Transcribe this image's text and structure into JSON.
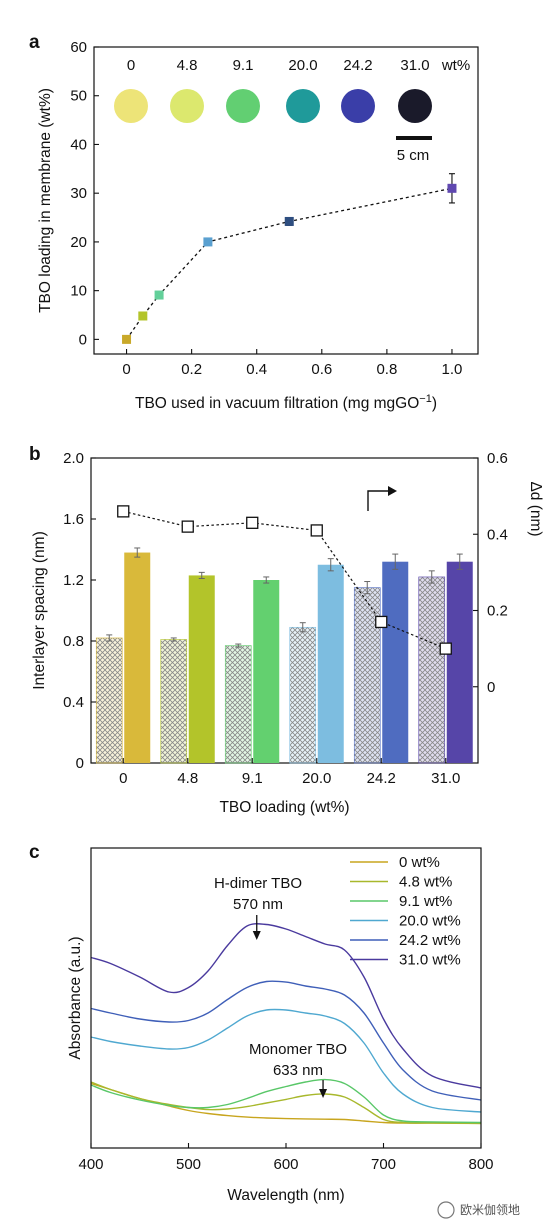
{
  "colors": {
    "c0": "#d9b93a",
    "c48": "#b3c42a",
    "c91": "#63d06f",
    "c200": "#7dbde0",
    "c242": "#4f6cc0",
    "c310": "#5645a8"
  },
  "chart_data": [
    {
      "panel": "a",
      "type": "scatter",
      "xlabel": "TBO used in vacuum filtration (mg mgGO",
      "xlabel_sup": "−1",
      "xlabel_end": ")",
      "ylabel": "TBO loading in membrane (wt%)",
      "xlim": [
        -0.1,
        1.08
      ],
      "ylim": [
        -3,
        60
      ],
      "xticks": [
        0,
        0.2,
        0.4,
        0.6,
        0.8,
        1.0
      ],
      "xtick_labels": [
        "0",
        "0.2",
        "0.4",
        "0.6",
        "0.8",
        "1.0"
      ],
      "yticks": [
        0,
        10,
        20,
        30,
        40,
        50,
        60
      ],
      "ytick_labels": [
        "0",
        "10",
        "20",
        "30",
        "40",
        "50",
        "60"
      ],
      "points": [
        {
          "x": 0,
          "y": 0,
          "err": 0,
          "color": "#c9a92a"
        },
        {
          "x": 0.05,
          "y": 4.8,
          "err": 0,
          "color": "#b3c42a"
        },
        {
          "x": 0.1,
          "y": 9.1,
          "err": 0,
          "color": "#63d09a"
        },
        {
          "x": 0.25,
          "y": 20.0,
          "err": 0,
          "color": "#5aa0d0"
        },
        {
          "x": 0.5,
          "y": 24.2,
          "err": 0.8,
          "color": "#2e4e80"
        },
        {
          "x": 1.0,
          "y": 31.0,
          "err": 3.0,
          "color": "#6048b0"
        }
      ],
      "inset_labels": [
        "0",
        "4.8",
        "9.1",
        "20.0",
        "24.2",
        "31.0",
        "wt%"
      ],
      "inset_disk_colors": [
        "#ede478",
        "#dce86e",
        "#62cf72",
        "#1f9a9a",
        "#3a3ea8",
        "#1a1a2a"
      ],
      "scale_bar_label": "5 cm"
    },
    {
      "panel": "b",
      "type": "bar",
      "xlabel": "TBO loading (wt%)",
      "ylabel": "Interlayer spacing (nm)",
      "ylabel_right": "Δd (nm)",
      "categories": [
        "0",
        "4.8",
        "9.1",
        "20.0",
        "24.2",
        "31.0"
      ],
      "ylim": [
        0,
        2.0
      ],
      "yticks": [
        0,
        0.4,
        0.8,
        1.2,
        1.6,
        2.0
      ],
      "ytick_labels": [
        "0",
        "0.4",
        "0.8",
        "1.2",
        "1.6",
        "2.0"
      ],
      "right_ylim": [
        -0.2,
        0.6
      ],
      "right_yticks": [
        0,
        0.2,
        0.4,
        0.6
      ],
      "right_ytick_labels": [
        "0",
        "0.2",
        "0.4",
        "0.6"
      ],
      "series": [
        {
          "values": [
            0.82,
            0.81,
            0.77,
            0.89,
            1.15,
            1.22
          ],
          "errors": [
            0.02,
            0.01,
            0.01,
            0.03,
            0.04,
            0.04
          ],
          "style": "hatched"
        },
        {
          "values": [
            1.38,
            1.23,
            1.2,
            1.3,
            1.32,
            1.32
          ],
          "errors": [
            0.03,
            0.02,
            0.02,
            0.04,
            0.05,
            0.05
          ],
          "style": "solid"
        },
        {
          "axis": "right",
          "type": "line",
          "values": [
            0.46,
            0.42,
            0.43,
            0.41,
            0.17,
            0.1
          ]
        }
      ]
    },
    {
      "panel": "c",
      "type": "line",
      "xlabel": "Wavelength (nm)",
      "ylabel": "Absorbance (a.u.)",
      "xlim": [
        400,
        800
      ],
      "xticks": [
        400,
        500,
        600,
        700,
        800
      ],
      "xtick_labels": [
        "400",
        "500",
        "600",
        "700",
        "800"
      ],
      "ylim": [
        0,
        1
      ],
      "series": [
        {
          "name": "0 wt%",
          "x": [
            400,
            420,
            450,
            480,
            500,
            520,
            540,
            560,
            580,
            600,
            620,
            640,
            660,
            680,
            700,
            720,
            750,
            800
          ],
          "y": [
            0.215,
            0.195,
            0.165,
            0.14,
            0.125,
            0.115,
            0.108,
            0.103,
            0.1,
            0.098,
            0.097,
            0.096,
            0.095,
            0.09,
            0.085,
            0.083,
            0.083,
            0.082
          ]
        },
        {
          "name": "4.8 wt%",
          "x": [
            400,
            420,
            450,
            480,
            500,
            520,
            540,
            560,
            580,
            600,
            620,
            640,
            660,
            680,
            700,
            720,
            750,
            800
          ],
          "y": [
            0.22,
            0.195,
            0.165,
            0.145,
            0.135,
            0.128,
            0.13,
            0.138,
            0.15,
            0.162,
            0.175,
            0.18,
            0.17,
            0.135,
            0.095,
            0.085,
            0.083,
            0.082
          ]
        },
        {
          "name": "9.1 wt%",
          "x": [
            400,
            420,
            450,
            480,
            500,
            520,
            540,
            560,
            580,
            600,
            620,
            640,
            660,
            680,
            700,
            720,
            750,
            800
          ],
          "y": [
            0.21,
            0.185,
            0.16,
            0.142,
            0.135,
            0.135,
            0.145,
            0.165,
            0.188,
            0.205,
            0.22,
            0.228,
            0.215,
            0.17,
            0.11,
            0.09,
            0.087,
            0.085
          ]
        },
        {
          "name": "20.0 wt%",
          "x": [
            400,
            420,
            450,
            480,
            500,
            520,
            540,
            560,
            580,
            600,
            620,
            640,
            660,
            680,
            700,
            720,
            750,
            800
          ],
          "y": [
            0.37,
            0.355,
            0.34,
            0.33,
            0.335,
            0.36,
            0.4,
            0.44,
            0.46,
            0.46,
            0.45,
            0.44,
            0.415,
            0.35,
            0.25,
            0.18,
            0.135,
            0.12
          ]
        },
        {
          "name": "24.2 wt%",
          "x": [
            400,
            420,
            450,
            480,
            500,
            520,
            540,
            560,
            580,
            600,
            620,
            640,
            660,
            680,
            700,
            720,
            750,
            800
          ],
          "y": [
            0.465,
            0.45,
            0.43,
            0.42,
            0.425,
            0.45,
            0.495,
            0.535,
            0.555,
            0.553,
            0.54,
            0.53,
            0.51,
            0.45,
            0.35,
            0.26,
            0.19,
            0.16
          ]
        },
        {
          "name": "31.0 wt%",
          "x": [
            400,
            420,
            450,
            480,
            500,
            520,
            540,
            560,
            580,
            600,
            620,
            640,
            660,
            680,
            700,
            720,
            750,
            800
          ],
          "y": [
            0.635,
            0.615,
            0.57,
            0.52,
            0.535,
            0.59,
            0.675,
            0.74,
            0.745,
            0.73,
            0.705,
            0.68,
            0.66,
            0.57,
            0.43,
            0.33,
            0.24,
            0.2
          ]
        }
      ],
      "legend_position": "top-right",
      "annotations": [
        {
          "text": "H-dimer TBO",
          "text2": "570 nm",
          "x": 570
        },
        {
          "text": "Monomer TBO",
          "text2": "633 nm",
          "x": 638
        }
      ]
    }
  ],
  "watermark": "欧米伽领地"
}
